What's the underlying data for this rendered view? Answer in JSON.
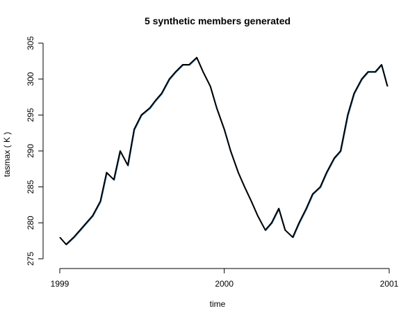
{
  "chart_data": {
    "type": "line",
    "title": "5 synthetic members generated",
    "xlabel": "time",
    "ylabel": "tasmax ( K )",
    "xlim": [
      "1999-01-01",
      "2001-01-01"
    ],
    "ylim": [
      275,
      305
    ],
    "x_ticks": [
      "1999",
      "2000",
      "2001"
    ],
    "y_ticks": [
      275,
      280,
      285,
      290,
      295,
      300,
      305
    ],
    "grid": false,
    "legend": "none",
    "colors": {
      "members": "#4a90c8",
      "overlay": "#000000"
    },
    "x": [
      "1999-01-01",
      "1999-01-15",
      "1999-02-01",
      "1999-02-15",
      "1999-03-01",
      "1999-03-15",
      "1999-04-01",
      "1999-04-15",
      "1999-05-01",
      "1999-05-15",
      "1999-06-01",
      "1999-06-15",
      "1999-07-01",
      "1999-07-20",
      "1999-08-01",
      "1999-08-15",
      "1999-09-01",
      "1999-09-15",
      "1999-10-01",
      "1999-10-15",
      "1999-11-01",
      "1999-11-15",
      "1999-12-01",
      "1999-12-15",
      "2000-01-01",
      "2000-01-15",
      "2000-02-01",
      "2000-02-15",
      "2000-03-01",
      "2000-03-15",
      "2000-04-01",
      "2000-04-15",
      "2000-05-01",
      "2000-05-15",
      "2000-06-01",
      "2000-06-15",
      "2000-07-01",
      "2000-07-15",
      "2000-08-01",
      "2000-08-15",
      "2000-09-01",
      "2000-09-15",
      "2000-10-01",
      "2000-10-15",
      "2000-11-01",
      "2000-11-15",
      "2000-12-01",
      "2000-12-15",
      "2000-12-28"
    ],
    "series": [
      {
        "values": [
          278,
          277,
          278,
          279,
          280,
          281,
          283,
          287,
          286,
          290,
          288,
          293,
          295,
          296,
          297,
          298,
          300,
          301,
          302,
          302,
          303,
          301,
          299,
          296,
          293,
          290,
          287,
          285,
          283,
          281,
          279,
          280,
          282,
          279,
          278,
          280,
          282,
          284,
          285,
          287,
          289,
          290,
          295,
          298,
          300,
          301,
          301,
          302,
          299
        ]
      }
    ]
  }
}
